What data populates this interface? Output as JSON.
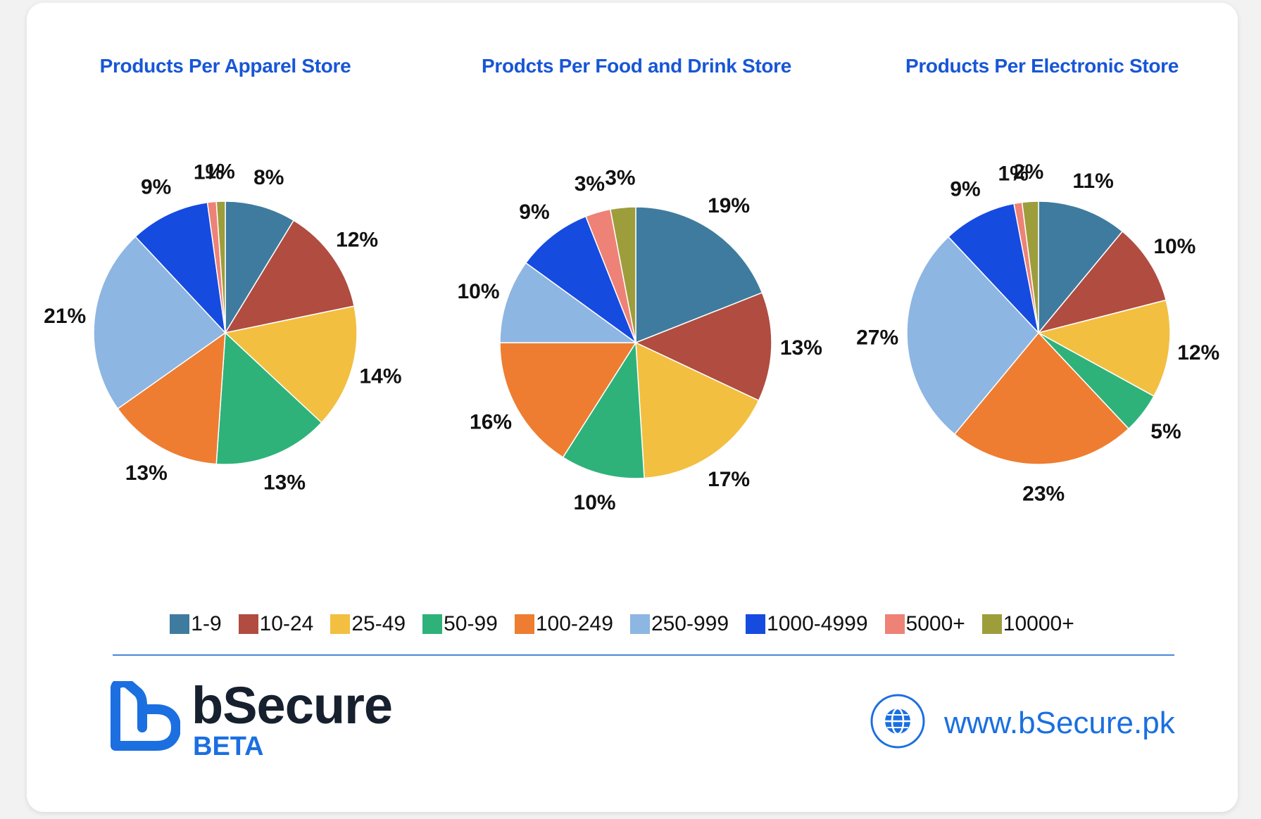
{
  "chart_data": [
    {
      "type": "pie",
      "title": "Products Per Apparel Store",
      "categories": [
        "1-9",
        "10-24",
        "25-49",
        "50-99",
        "100-249",
        "250-999",
        "1000-4999",
        "5000+",
        "10000+"
      ],
      "values": [
        8,
        12,
        14,
        13,
        13,
        21,
        9,
        1,
        1
      ],
      "labels": [
        "8%",
        "12%",
        "14%",
        "13%",
        "13%",
        "21%",
        "9%",
        "1%",
        "1%"
      ]
    },
    {
      "type": "pie",
      "title": "Prodcts Per Food and Drink Store",
      "categories": [
        "1-9",
        "10-24",
        "25-49",
        "50-99",
        "100-249",
        "250-999",
        "1000-4999",
        "5000+",
        "10000+"
      ],
      "values": [
        19,
        13,
        17,
        10,
        16,
        10,
        9,
        3,
        3
      ],
      "labels": [
        "19%",
        "13%",
        "17%",
        "10%",
        "16%",
        "10%",
        "9%",
        "3%",
        "3%"
      ]
    },
    {
      "type": "pie",
      "title": "Products Per Electronic Store",
      "categories": [
        "1-9",
        "10-24",
        "25-49",
        "50-99",
        "100-249",
        "250-999",
        "1000-4999",
        "5000+",
        "10000+"
      ],
      "values": [
        11,
        10,
        12,
        5,
        23,
        27,
        9,
        1,
        2
      ],
      "labels": [
        "11%",
        "10%",
        "12%",
        "5%",
        "23%",
        "27%",
        "9%",
        "1%",
        "2%"
      ]
    }
  ],
  "legend": {
    "items": [
      {
        "label": "1-9",
        "color": "#3f7b9e"
      },
      {
        "label": "10-24",
        "color": "#b04c40"
      },
      {
        "label": "25-49",
        "color": "#f2bf41"
      },
      {
        "label": "50-99",
        "color": "#2eb27a"
      },
      {
        "label": "100-249",
        "color": "#ee7d31"
      },
      {
        "label": "250-999",
        "color": "#8db6e2"
      },
      {
        "label": "1000-4999",
        "color": "#164be0"
      },
      {
        "label": "5000+",
        "color": "#ee8276"
      },
      {
        "label": "10000+",
        "color": "#9d9d3c"
      }
    ]
  },
  "slice_colors": [
    "#3f7b9e",
    "#b04c40",
    "#f2bf41",
    "#2eb27a",
    "#ee7d31",
    "#8db6e2",
    "#164be0",
    "#ee8276",
    "#9d9d3c"
  ],
  "brand": {
    "name": "bSecure",
    "sub": "BETA",
    "logo_icon": "bsecure-logo-icon",
    "accent_color": "#1b6fe0"
  },
  "footer": {
    "website": "www.bSecure.pk",
    "globe_icon": "globe-icon"
  }
}
